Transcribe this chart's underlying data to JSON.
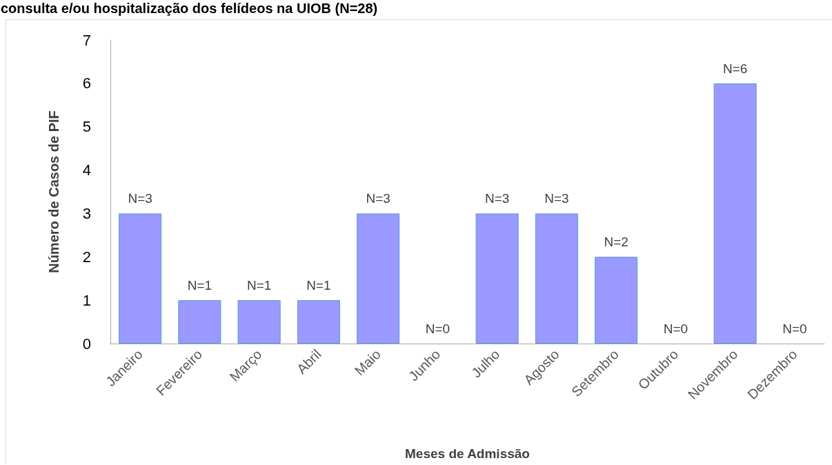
{
  "chart_data": {
    "type": "bar",
    "title": "consulta e/ou hospitalização dos felídeos na UIOB (N=28)",
    "xlabel": "Meses de Admissão",
    "ylabel": "Número de Casos de PIF",
    "categories": [
      "Janeiro",
      "Fevereiro",
      "Março",
      "Abril",
      "Maio",
      "Junho",
      "Julho",
      "Agosto",
      "Setembro",
      "Outubro",
      "Novembro",
      "Dezembro"
    ],
    "values": [
      3,
      1,
      1,
      1,
      3,
      0,
      3,
      3,
      2,
      0,
      6,
      0
    ],
    "value_labels": [
      "N=3",
      "N=1",
      "N=1",
      "N=1",
      "N=3",
      "N=0",
      "N=3",
      "N=3",
      "N=2",
      "N=0",
      "N=6",
      "N=0"
    ],
    "color": "#9999ff",
    "ylim": [
      0,
      7
    ],
    "yticks": [
      0,
      1,
      2,
      3,
      4,
      5,
      6,
      7
    ]
  }
}
